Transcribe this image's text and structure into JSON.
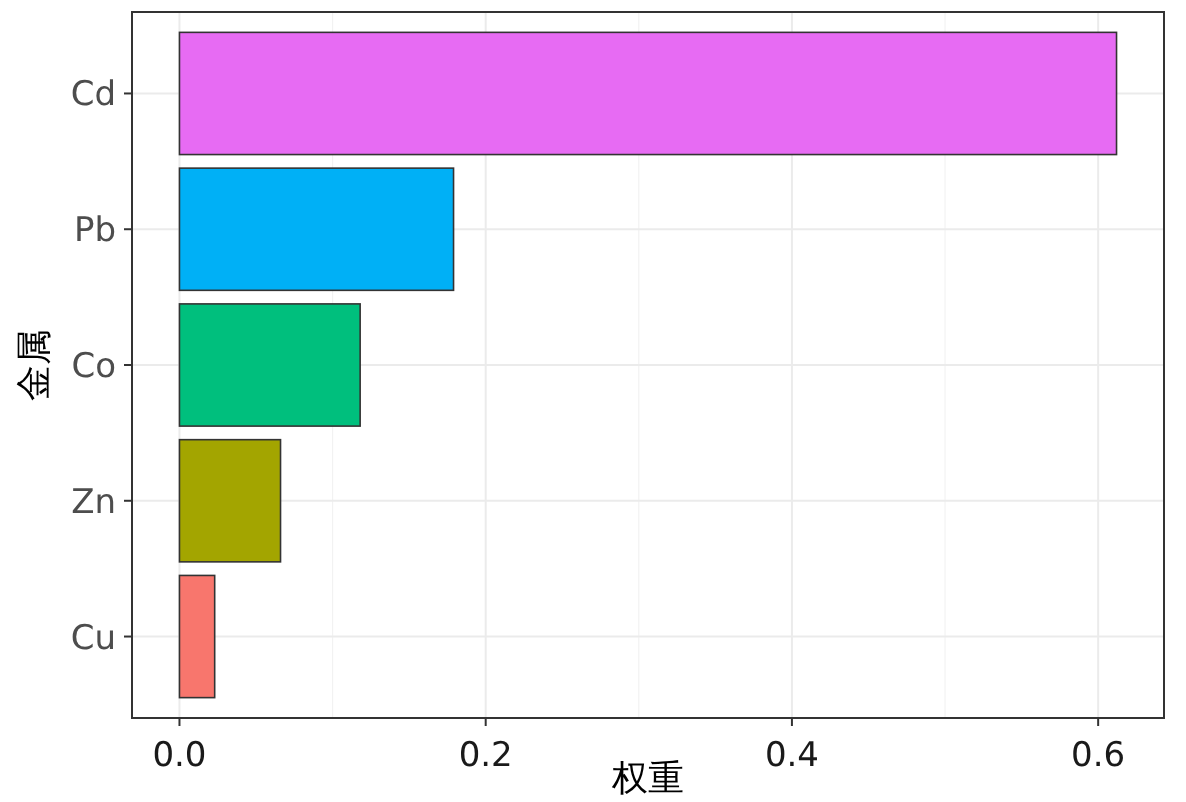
{
  "chart_data": {
    "type": "bar",
    "orientation": "horizontal",
    "xlabel": "权重",
    "ylabel": "金属",
    "categories": [
      "Cd",
      "Pb",
      "Co",
      "Zn",
      "Cu"
    ],
    "values": [
      0.612,
      0.179,
      0.118,
      0.066,
      0.023
    ],
    "colors": [
      "#e76bf3",
      "#00b0f6",
      "#00bf7d",
      "#a3a500",
      "#f8766d"
    ],
    "xlim": [
      -0.031,
      0.643
    ],
    "xticks": [
      {
        "value": 0,
        "label": "0.0"
      },
      0.2,
      0.4,
      0.6
    ],
    "grid": true
  }
}
